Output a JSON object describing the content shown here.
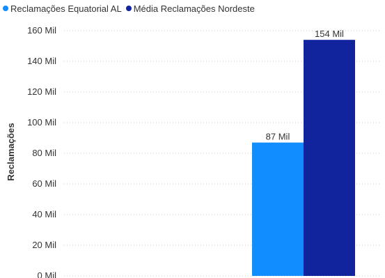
{
  "chart_data": {
    "type": "bar",
    "categories": [
      ""
    ],
    "series": [
      {
        "name": "Reclamações Equatorial AL",
        "values": [
          87
        ],
        "value_labels": [
          "87 Mil"
        ],
        "color": "#118DFF"
      },
      {
        "name": "Média Reclamações Nordeste",
        "values": [
          154
        ],
        "value_labels": [
          "154 Mil"
        ],
        "color": "#12239E"
      }
    ],
    "ylabel": "Reclamações",
    "ylim": [
      0,
      160
    ],
    "yticks": [
      0,
      20,
      40,
      60,
      80,
      100,
      120,
      140,
      160
    ],
    "ytick_labels": [
      "0 Mil",
      "20 Mil",
      "40 Mil",
      "60 Mil",
      "80 Mil",
      "100 Mil",
      "120 Mil",
      "140 Mil",
      "160 Mil"
    ],
    "grid": true,
    "legend_position": "top-left"
  }
}
